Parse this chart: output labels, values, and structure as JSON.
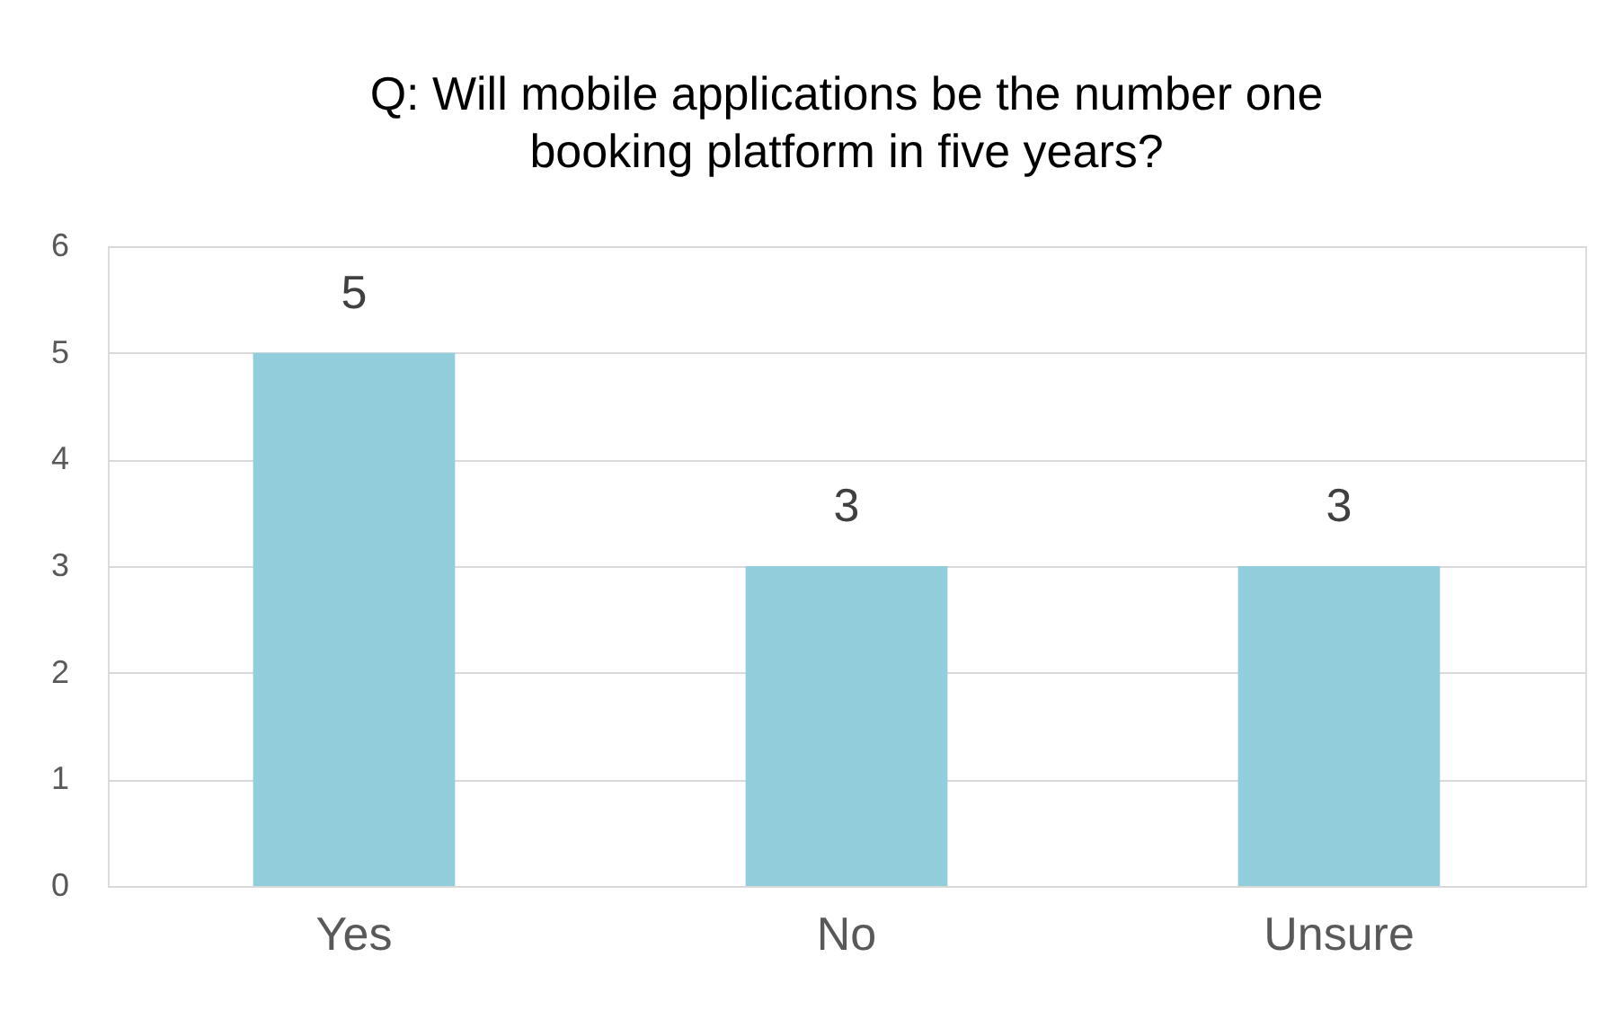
{
  "chart_data": {
    "type": "bar",
    "title": "Q: Will mobile applications be the number one booking platform in five years?",
    "categories": [
      "Yes",
      "No",
      "Unsure"
    ],
    "values": [
      5,
      3,
      3
    ],
    "color": "#92cddc",
    "ylim": [
      0,
      6
    ],
    "yticks": [
      0,
      1,
      2,
      3,
      4,
      5,
      6
    ],
    "grid": "y",
    "data_labels": true
  }
}
